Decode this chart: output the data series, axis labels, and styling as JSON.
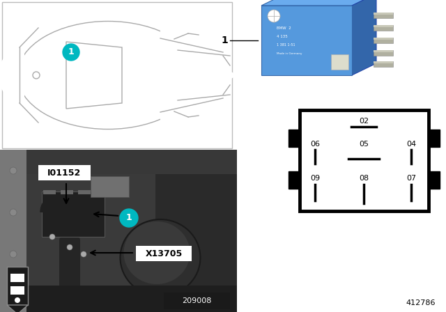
{
  "bg_color": "#ffffff",
  "car_line_color": "#aaaaaa",
  "teal_color": "#00b8c0",
  "teal_text": "#ffffff",
  "relay_blue": "#5599dd",
  "relay_blue2": "#4488cc",
  "relay_blue_dark": "#3366aa",
  "relay_blue_side": "#2255aa",
  "pin_metal": "#b0b0a0",
  "pin_metal2": "#c8c8b8",
  "photo_colors": {
    "base": "#606060",
    "dark": "#2a2a2a",
    "mid": "#484848",
    "light": "#808080",
    "silver": "#909090",
    "tube": "#383838",
    "panel": "#707070"
  },
  "label_io": "I01152",
  "label_x": "X13705",
  "label_209008": "209008",
  "label_412786": "412786",
  "pin_top": "02",
  "pin_mid": [
    "06",
    "05",
    "04"
  ],
  "pin_bot": [
    "09",
    "08",
    "07"
  ]
}
